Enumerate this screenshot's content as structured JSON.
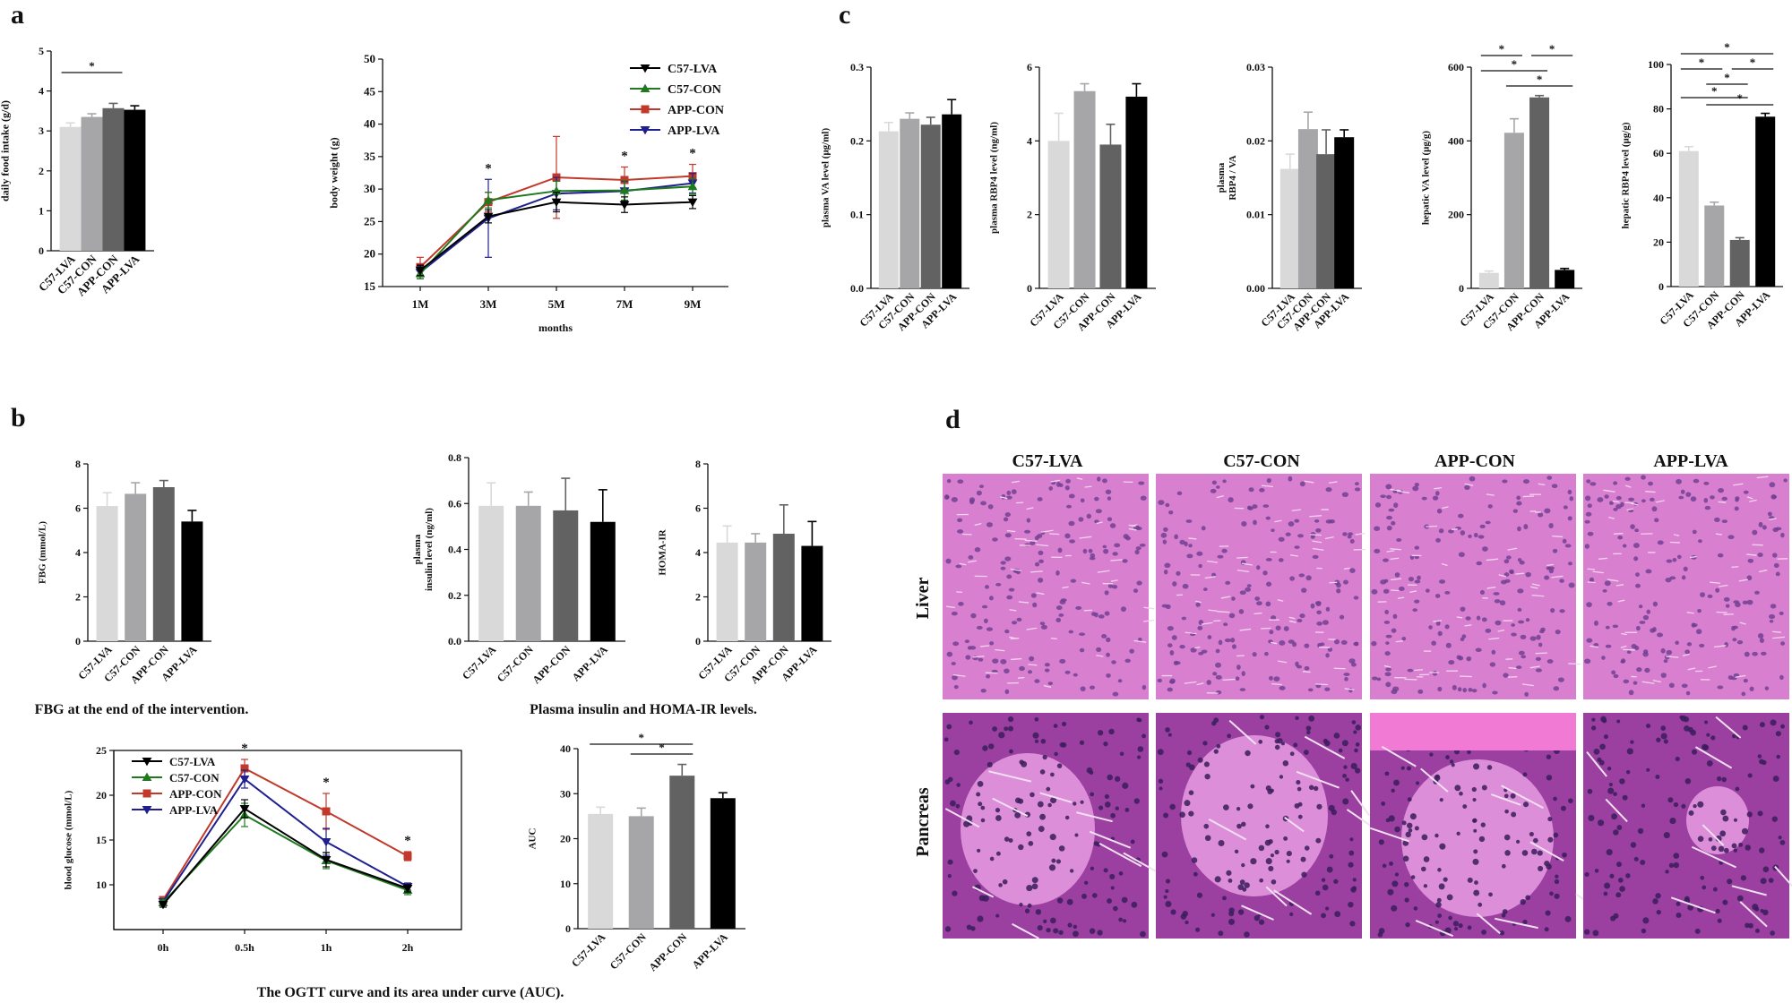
{
  "colors": {
    "c57_lva": "#d9d9d9",
    "c57_con": "#a6a6a8",
    "app_con": "#626262",
    "app_lva": "#000000",
    "line_c57_lva": "#000000",
    "line_c57_con": "#1f7a1f",
    "line_app_con": "#c0392b",
    "line_app_lva": "#1f1f8f",
    "tissue_pink": "#d777c9"
  },
  "panels": {
    "a": "a",
    "b": "b",
    "c": "c",
    "d": "d"
  },
  "captions": {
    "fbg": "FBG at the end of the intervention.",
    "insulin": "Plasma insulin and HOMA-IR levels.",
    "ogtt": "The OGTT curve and its area under curve (AUC)."
  },
  "histology": {
    "columns": [
      "C57-LVA",
      "C57-CON",
      "APP-CON",
      "APP-LVA"
    ],
    "rows": [
      "Liver",
      "Pancreas"
    ]
  },
  "chart_data": [
    {
      "id": "a1",
      "type": "bar",
      "categories": [
        "C57-LVA",
        "C57-CON",
        "APP-CON",
        "APP-LVA"
      ],
      "values": [
        3.1,
        3.35,
        3.57,
        3.53
      ],
      "errors": [
        0.1,
        0.08,
        0.12,
        0.1
      ],
      "ylabel": "daily food intake (g/d)",
      "ylim": [
        0,
        5
      ],
      "yticks": [
        0,
        1,
        2,
        3,
        4,
        5
      ],
      "sig": [
        {
          "from": 0,
          "to": 2,
          "label": "*"
        }
      ]
    },
    {
      "id": "a2",
      "type": "line",
      "x": [
        "1M",
        "3M",
        "5M",
        "7M",
        "9M"
      ],
      "xlabel": "months",
      "ylabel": "body weight (g)",
      "ylim": [
        15,
        50
      ],
      "yticks": [
        15,
        20,
        25,
        30,
        35,
        40,
        45,
        50
      ],
      "series": [
        {
          "name": "C57-LVA",
          "values": [
            17.5,
            25.8,
            28.0,
            27.6,
            28.0
          ],
          "errors": [
            0.8,
            1.0,
            1.5,
            1.2,
            1.0
          ],
          "marker": "tri-down",
          "color": "#000000"
        },
        {
          "name": "C57-CON",
          "values": [
            17.0,
            28.3,
            29.7,
            29.8,
            30.4
          ],
          "errors": [
            0.8,
            1.2,
            1.5,
            1.5,
            1.2
          ],
          "marker": "tri-up",
          "color": "#1f7a1f"
        },
        {
          "name": "APP-CON",
          "values": [
            18.0,
            28.0,
            31.8,
            31.4,
            32.0
          ],
          "errors": [
            1.5,
            1.5,
            6.3,
            2.0,
            1.8
          ],
          "marker": "square",
          "color": "#c0392b"
        },
        {
          "name": "APP-LVA",
          "values": [
            17.2,
            25.5,
            29.3,
            29.7,
            30.9
          ],
          "errors": [
            1.0,
            6.0,
            2.5,
            1.5,
            1.5
          ],
          "marker": "tri-down",
          "color": "#1f1f8f"
        }
      ],
      "stars": [
        "3M",
        "7M",
        "9M"
      ],
      "legend": "top-right"
    },
    {
      "id": "b1",
      "type": "bar",
      "categories": [
        "C57-LVA",
        "C57-CON",
        "APP-CON",
        "APP-LVA"
      ],
      "values": [
        6.1,
        6.65,
        6.95,
        5.4
      ],
      "errors": [
        0.6,
        0.5,
        0.3,
        0.5
      ],
      "ylabel": "FBG (mmol/L)",
      "ylim": [
        0,
        8
      ],
      "yticks": [
        0,
        2,
        4,
        6,
        8
      ]
    },
    {
      "id": "b2",
      "type": "bar",
      "categories": [
        "C57-LVA",
        "C57-CON",
        "APP-CON",
        "APP-LVA"
      ],
      "values": [
        0.59,
        0.59,
        0.57,
        0.52
      ],
      "errors": [
        0.1,
        0.06,
        0.14,
        0.14
      ],
      "ylabel_lines": [
        "plasma",
        "insulin level (ng/ml)"
      ],
      "ylim": [
        0,
        0.8
      ],
      "yticks": [
        0.0,
        0.2,
        0.4,
        0.6,
        0.8
      ]
    },
    {
      "id": "b3",
      "type": "bar",
      "categories": [
        "C57-LVA",
        "C57-CON",
        "APP-CON",
        "APP-LVA"
      ],
      "values": [
        4.45,
        4.45,
        4.85,
        4.3
      ],
      "errors": [
        0.75,
        0.4,
        1.3,
        1.1
      ],
      "ylabel": "HOMA-IR",
      "ylim": [
        0,
        8
      ],
      "yticks": [
        0,
        2,
        4,
        6,
        8
      ]
    },
    {
      "id": "b4",
      "type": "line",
      "x": [
        "0h",
        "0.5h",
        "1h",
        "2h"
      ],
      "ylabel": "blood glucose (mmol/L)",
      "ylim": [
        5,
        25
      ],
      "yticks": [
        10,
        15,
        20,
        25
      ],
      "series": [
        {
          "name": "C57-LVA",
          "values": [
            7.8,
            18.5,
            12.8,
            9.6
          ],
          "errors": [
            0.3,
            1.0,
            0.8,
            0.4
          ],
          "marker": "tri-down",
          "color": "#000000"
        },
        {
          "name": "C57-CON",
          "values": [
            8.0,
            17.8,
            12.7,
            9.4
          ],
          "errors": [
            0.3,
            1.3,
            0.9,
            0.5
          ],
          "marker": "tri-up",
          "color": "#1f7a1f"
        },
        {
          "name": "APP-CON",
          "values": [
            8.3,
            23.0,
            18.2,
            13.2
          ],
          "errors": [
            0.3,
            1.0,
            2.0,
            0.5
          ],
          "marker": "square",
          "color": "#c0392b"
        },
        {
          "name": "APP-LVA",
          "values": [
            8.1,
            21.8,
            14.8,
            9.8
          ],
          "errors": [
            0.3,
            1.0,
            1.5,
            0.4
          ],
          "marker": "tri-down",
          "color": "#1f1f8f"
        }
      ],
      "stars": [
        "0.5h",
        "1h",
        "2h"
      ],
      "legend": "top-left"
    },
    {
      "id": "b5",
      "type": "bar",
      "categories": [
        "C57-LVA",
        "C57-CON",
        "APP-CON",
        "APP-LVA"
      ],
      "values": [
        25.5,
        25.0,
        34.0,
        29.0
      ],
      "errors": [
        1.5,
        1.8,
        2.5,
        1.2
      ],
      "ylabel": "AUC",
      "ylim": [
        0,
        40
      ],
      "yticks": [
        0,
        10,
        20,
        30,
        40
      ],
      "sig": [
        {
          "from": 0,
          "to": 2,
          "label": "*"
        },
        {
          "from": 1,
          "to": 2,
          "label": "*"
        }
      ]
    },
    {
      "id": "c1",
      "type": "bar",
      "categories": [
        "C57-LVA",
        "C57-CON",
        "APP-CON",
        "APP-LVA"
      ],
      "values": [
        0.213,
        0.23,
        0.222,
        0.236
      ],
      "errors": [
        0.012,
        0.008,
        0.01,
        0.02
      ],
      "ylabel": "plasma VA level (μg/ml)",
      "ylim": [
        0,
        0.3
      ],
      "yticks": [
        0.0,
        0.1,
        0.2,
        0.3
      ]
    },
    {
      "id": "c2",
      "type": "bar",
      "categories": [
        "C57-LVA",
        "C57-CON",
        "APP-CON",
        "APP-LVA"
      ],
      "values": [
        4.0,
        5.35,
        3.9,
        5.2
      ],
      "errors": [
        0.75,
        0.2,
        0.55,
        0.35
      ],
      "ylabel": "plasma RBP4 level (ng/ml)",
      "ylim": [
        0,
        6
      ],
      "yticks": [
        0,
        2,
        4,
        6
      ]
    },
    {
      "id": "c3",
      "type": "bar",
      "categories": [
        "C57-LVA",
        "C57-CON",
        "APP-CON",
        "APP-LVA"
      ],
      "values": [
        0.0162,
        0.0216,
        0.0182,
        0.0205
      ],
      "errors": [
        0.002,
        0.0023,
        0.0033,
        0.001
      ],
      "ylabel_lines": [
        "plasma",
        "RBP4 / VA"
      ],
      "ylim": [
        0,
        0.03
      ],
      "yticks": [
        0.0,
        0.01,
        0.02,
        0.03
      ]
    },
    {
      "id": "c4",
      "type": "bar",
      "categories": [
        "C57-LVA",
        "C57-CON",
        "APP-CON",
        "APP-LVA"
      ],
      "values": [
        42,
        422,
        518,
        50
      ],
      "errors": [
        5,
        38,
        5,
        4
      ],
      "ylabel": "hepatic VA level (μg/g)",
      "ylim": [
        0,
        600
      ],
      "yticks": [
        0,
        200,
        400,
        600
      ],
      "sig": [
        {
          "from": 0,
          "to": 1,
          "label": "*"
        },
        {
          "from": 2,
          "to": 3,
          "label": "*"
        },
        {
          "from": 0,
          "to": 2,
          "label": "*"
        },
        {
          "from": 1,
          "to": 3,
          "label": "*"
        }
      ]
    },
    {
      "id": "c5",
      "type": "bar",
      "categories": [
        "C57-LVA",
        "C57-CON",
        "APP-CON",
        "APP-LVA"
      ],
      "values": [
        61,
        36.5,
        21,
        76.5
      ],
      "errors": [
        2,
        1.5,
        1,
        1.5
      ],
      "ylabel": "hepatic RBP4 level (μg/g)",
      "ylim": [
        0,
        100
      ],
      "yticks": [
        0,
        20,
        40,
        60,
        80,
        100
      ],
      "sig": [
        {
          "from": 0,
          "to": 3,
          "label": "*"
        },
        {
          "from": 0,
          "to": 1,
          "label": "*"
        },
        {
          "from": 2,
          "to": 3,
          "label": "*"
        },
        {
          "from": 1,
          "to": 2,
          "label": "*"
        },
        {
          "from": 0,
          "to": 2,
          "label": "*"
        },
        {
          "from": 1,
          "to": 3,
          "label": "*"
        }
      ]
    }
  ]
}
